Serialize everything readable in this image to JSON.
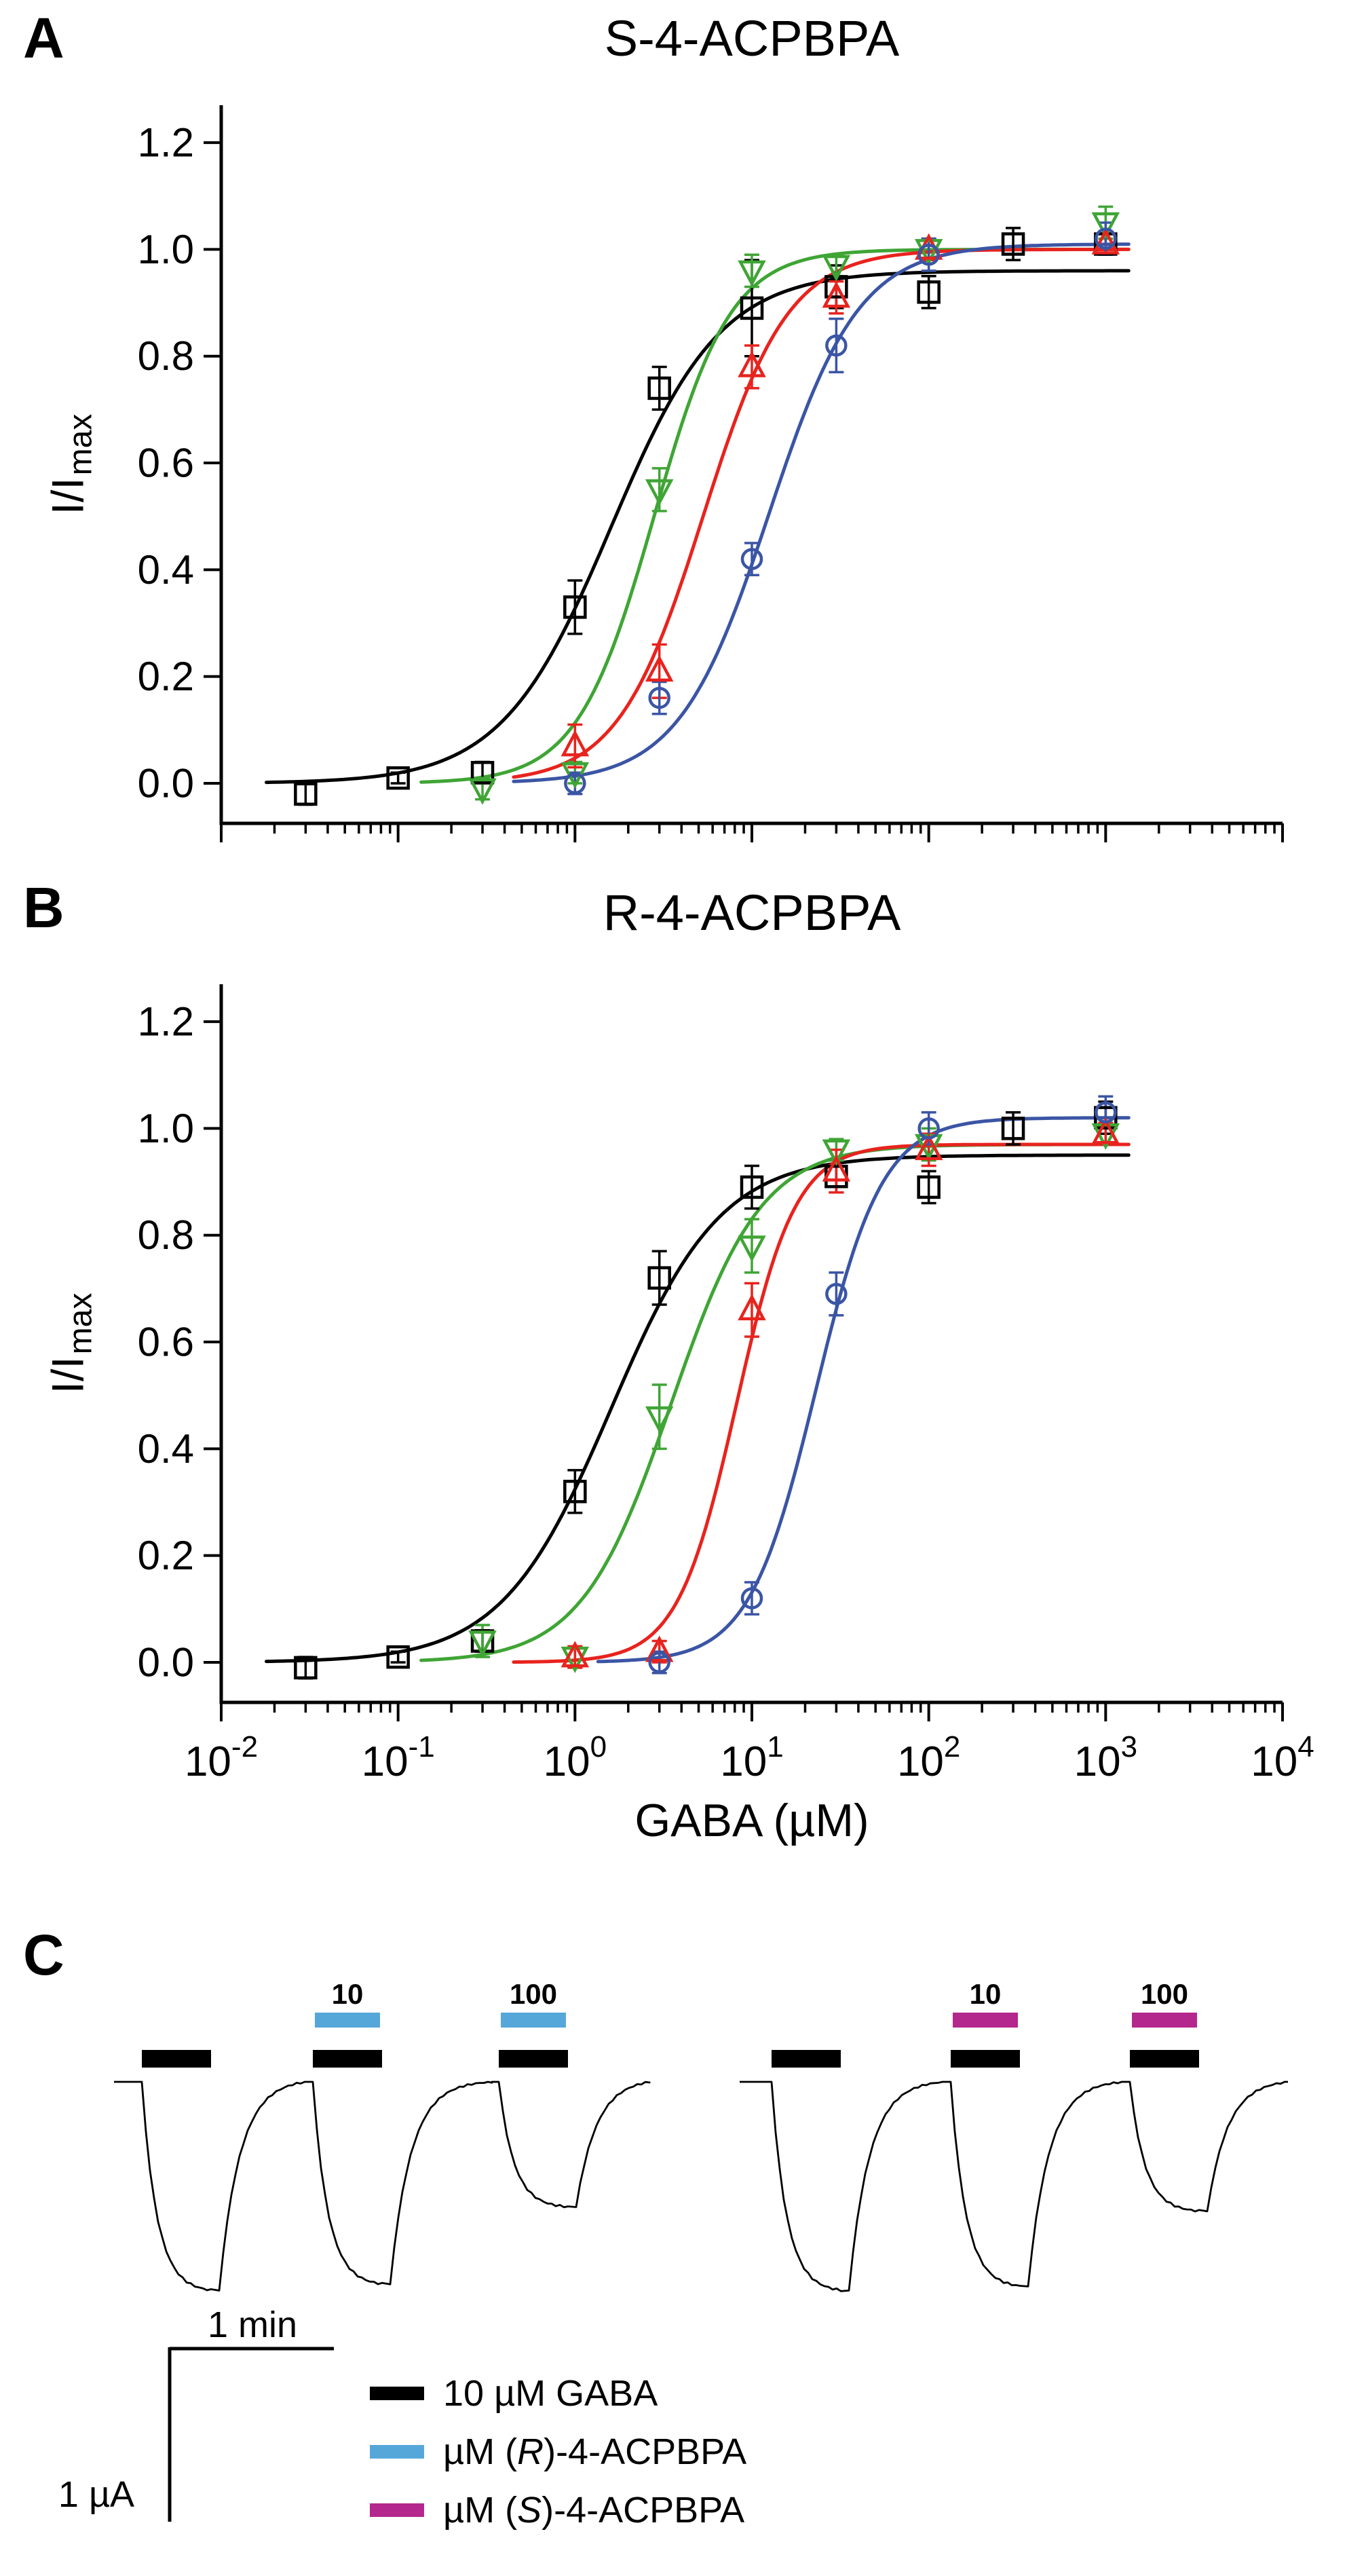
{
  "panels": {
    "a": {
      "label": "A",
      "title": "S-4-ACPBPA"
    },
    "b": {
      "label": "B",
      "title": "R-4-ACPBPA"
    },
    "c": {
      "label": "C"
    }
  },
  "axis": {
    "ylabel_main": "I/I",
    "ylabel_sub": "max",
    "xlabel": "GABA (µM)"
  },
  "chart_data": [
    {
      "type": "scatter",
      "panel": "A",
      "title": "S-4-ACPBPA",
      "xlabel": "GABA (µM)",
      "ylabel": "I/Imax",
      "xscale": "log",
      "xlim_exp": [
        -2,
        4
      ],
      "ylim": [
        -0.075,
        1.27
      ],
      "yticks": [
        0.0,
        0.2,
        0.4,
        0.6,
        0.8,
        1.0,
        1.2
      ],
      "ytick_labels": [
        "0.0",
        "0.2",
        "0.4",
        "0.6",
        "0.8",
        "1.0",
        "1.2"
      ],
      "xtick_exponents": [
        -2,
        -1,
        0,
        1,
        2,
        3,
        4
      ],
      "show_x_tick_labels": false,
      "grid": false,
      "series": [
        {
          "name": "black-squares",
          "marker": "square",
          "color": "#000000",
          "x": [
            0.03,
            0.1,
            0.3,
            1,
            3,
            10,
            30,
            100,
            300,
            1000
          ],
          "y": [
            -0.02,
            0.01,
            0.02,
            0.33,
            0.74,
            0.89,
            0.93,
            0.92,
            1.01,
            1.01
          ],
          "err": [
            0.02,
            0.01,
            0.02,
            0.05,
            0.04,
            0.09,
            0.04,
            0.03,
            0.03,
            0.02
          ],
          "fit": {
            "ec50": 1.6,
            "hill": 1.4,
            "top": 0.96
          }
        },
        {
          "name": "green-triangles-down",
          "marker": "triangle-down",
          "color": "#3fa535",
          "x": [
            0.3,
            1,
            3,
            10,
            30,
            100,
            1000
          ],
          "y": [
            -0.01,
            0.02,
            0.55,
            0.96,
            0.97,
            1.0,
            1.05
          ],
          "err": [
            0.02,
            0.02,
            0.04,
            0.03,
            0.02,
            0.02,
            0.03
          ],
          "fit": {
            "ec50": 2.8,
            "hill": 2.0,
            "top": 1.0
          }
        },
        {
          "name": "red-triangles-up",
          "marker": "triangle-up",
          "color": "#e8231e",
          "x": [
            1,
            3,
            10,
            30,
            100,
            1000
          ],
          "y": [
            0.07,
            0.21,
            0.78,
            0.91,
            1.0,
            1.01
          ],
          "err": [
            0.04,
            0.05,
            0.04,
            0.03,
            0.02,
            0.02
          ],
          "fit": {
            "ec50": 5.3,
            "hill": 1.8,
            "top": 1.0
          }
        },
        {
          "name": "blue-circles",
          "marker": "circle",
          "color": "#3b55a5",
          "x": [
            1,
            3,
            10,
            30,
            100,
            1000
          ],
          "y": [
            0.0,
            0.16,
            0.42,
            0.82,
            0.99,
            1.02
          ],
          "err": [
            0.02,
            0.03,
            0.03,
            0.05,
            0.03,
            0.03
          ],
          "fit": {
            "ec50": 12.5,
            "hill": 1.7,
            "top": 1.01
          }
        }
      ]
    },
    {
      "type": "scatter",
      "panel": "B",
      "title": "R-4-ACPBPA",
      "xlabel": "GABA (µM)",
      "ylabel": "I/Imax",
      "xscale": "log",
      "xlim_exp": [
        -2,
        4
      ],
      "ylim": [
        -0.075,
        1.27
      ],
      "yticks": [
        0.0,
        0.2,
        0.4,
        0.6,
        0.8,
        1.0,
        1.2
      ],
      "ytick_labels": [
        "0.0",
        "0.2",
        "0.4",
        "0.6",
        "0.8",
        "1.0",
        "1.2"
      ],
      "xtick_exponents": [
        -2,
        -1,
        0,
        1,
        2,
        3,
        4
      ],
      "show_x_tick_labels": true,
      "grid": false,
      "series": [
        {
          "name": "black-squares",
          "marker": "square",
          "color": "#000000",
          "x": [
            0.03,
            0.1,
            0.3,
            1,
            3,
            10,
            30,
            100,
            300,
            1000
          ],
          "y": [
            -0.01,
            0.01,
            0.04,
            0.32,
            0.72,
            0.89,
            0.91,
            0.89,
            1.0,
            1.02
          ],
          "err": [
            0.02,
            0.01,
            0.02,
            0.04,
            0.05,
            0.04,
            0.03,
            0.03,
            0.03,
            0.03
          ],
          "fit": {
            "ec50": 1.6,
            "hill": 1.4,
            "top": 0.95
          }
        },
        {
          "name": "green-triangles-down",
          "marker": "triangle-down",
          "color": "#3fa535",
          "x": [
            0.3,
            1,
            3,
            10,
            30,
            100,
            1000
          ],
          "y": [
            0.04,
            0.01,
            0.46,
            0.78,
            0.96,
            0.97,
            0.99
          ],
          "err": [
            0.03,
            0.02,
            0.06,
            0.05,
            0.02,
            0.03,
            0.02
          ],
          "fit": {
            "ec50": 3.5,
            "hill": 1.7,
            "top": 0.97
          }
        },
        {
          "name": "red-triangles-up",
          "marker": "triangle-up",
          "color": "#e8231e",
          "x": [
            1,
            3,
            10,
            30,
            100,
            1000
          ],
          "y": [
            0.01,
            0.02,
            0.66,
            0.92,
            0.96,
            0.99
          ],
          "err": [
            0.02,
            0.02,
            0.05,
            0.04,
            0.03,
            0.02
          ],
          "fit": {
            "ec50": 8.2,
            "hill": 2.6,
            "top": 0.97
          }
        },
        {
          "name": "blue-circles",
          "marker": "circle",
          "color": "#3b55a5",
          "x": [
            3,
            10,
            30,
            100,
            1000
          ],
          "y": [
            0.0,
            0.12,
            0.69,
            1.0,
            1.03
          ],
          "err": [
            0.02,
            0.03,
            0.04,
            0.03,
            0.03
          ],
          "fit": {
            "ec50": 23,
            "hill": 2.3,
            "top": 1.02
          }
        }
      ]
    },
    {
      "type": "traces",
      "panel": "C",
      "gaba_bar_color": "#000000",
      "groups": [
        {
          "drug_color": "#55a7d9",
          "pulses": [
            {
              "drug_label": null,
              "amplitude": 1.0
            },
            {
              "drug_label": "10",
              "amplitude": 0.97
            },
            {
              "drug_label": "100",
              "amplitude": 0.6
            }
          ]
        },
        {
          "drug_color": "#b4278d",
          "pulses": [
            {
              "drug_label": null,
              "amplitude": 1.0
            },
            {
              "drug_label": "10",
              "amplitude": 0.98
            },
            {
              "drug_label": "100",
              "amplitude": 0.62
            }
          ]
        }
      ],
      "scale_bar": {
        "time": "1 min",
        "current": "1 µA"
      },
      "legend": [
        {
          "color": "#000000",
          "label": "10 µM GABA"
        },
        {
          "color": "#55a7d9",
          "pre": "µM (",
          "stereo": "R",
          "post": ")-4-ACPBPA"
        },
        {
          "color": "#b4278d",
          "pre": "µM (",
          "stereo": "S",
          "post": ")-4-ACPBPA"
        }
      ]
    }
  ]
}
